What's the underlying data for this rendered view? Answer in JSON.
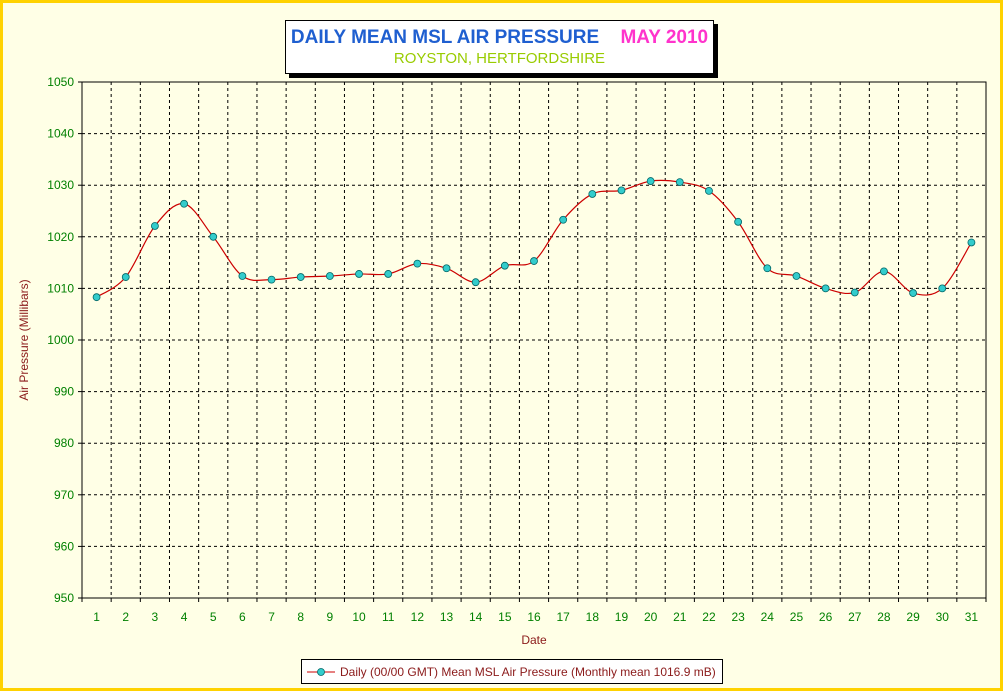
{
  "title": {
    "main": "DAILY MEAN MSL AIR PRESSURE",
    "month": "MAY 2010",
    "subtitle": "ROYSTON, HERTFORDSHIRE"
  },
  "colors": {
    "title": "#1f5fd0",
    "month": "#ff33cc",
    "subtitle": "#99cc00",
    "line": "#cc0000",
    "marker": "#33cccc",
    "axis_text": "#008000",
    "axis_title": "#8b1a1a",
    "frame": "#ffd200"
  },
  "chart_data": {
    "type": "line",
    "xlabel": "Date",
    "ylabel": "Air Pressure (Millibars)",
    "x": [
      1,
      2,
      3,
      4,
      5,
      6,
      7,
      8,
      9,
      10,
      11,
      12,
      13,
      14,
      15,
      16,
      17,
      18,
      19,
      20,
      21,
      22,
      23,
      24,
      25,
      26,
      27,
      28,
      29,
      30,
      31
    ],
    "ylim": [
      950,
      1050
    ],
    "yticks": [
      950,
      960,
      970,
      980,
      990,
      1000,
      1010,
      1020,
      1030,
      1040,
      1050
    ],
    "grid": true,
    "legend_position": "bottom",
    "series": [
      {
        "name": "Daily (00/00 GMT) Mean MSL Air Pressure (Monthly mean 1016.9 mB)",
        "values": [
          1008.3,
          1012.2,
          1022.1,
          1026.4,
          1020.0,
          1012.4,
          1011.7,
          1012.2,
          1012.4,
          1012.8,
          1012.8,
          1014.8,
          1013.9,
          1011.2,
          1014.4,
          1015.3,
          1023.3,
          1028.3,
          1029.0,
          1030.8,
          1030.6,
          1028.9,
          1022.9,
          1013.9,
          1012.4,
          1010.0,
          1009.2,
          1013.3,
          1009.1,
          1010.0,
          1018.9
        ]
      }
    ]
  }
}
